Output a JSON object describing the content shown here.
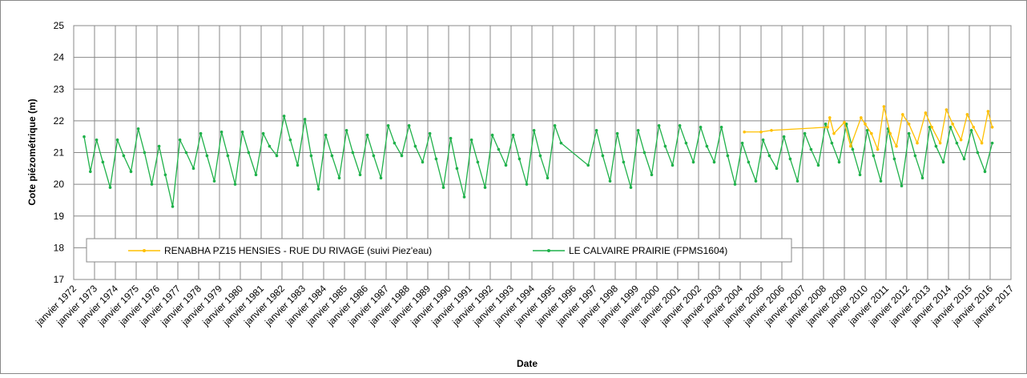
{
  "chart_data": {
    "type": "line",
    "y_label": "Cote piézométrique (m)",
    "x_label": "Date",
    "ylim": [
      17,
      25
    ],
    "yticks": [
      17,
      18,
      19,
      20,
      21,
      22,
      23,
      24,
      25
    ],
    "xlim": [
      1972,
      2017
    ],
    "xticks": [
      {
        "value": 1972,
        "label": "janvier 1972"
      },
      {
        "value": 1973,
        "label": "janvier 1973"
      },
      {
        "value": 1974,
        "label": "janvier 1974"
      },
      {
        "value": 1975,
        "label": "janvier 1975"
      },
      {
        "value": 1976,
        "label": "janvier 1976"
      },
      {
        "value": 1977,
        "label": "janvier 1977"
      },
      {
        "value": 1978,
        "label": "janvier 1978"
      },
      {
        "value": 1979,
        "label": "janvier 1979"
      },
      {
        "value": 1980,
        "label": "janvier 1980"
      },
      {
        "value": 1981,
        "label": "janvier 1981"
      },
      {
        "value": 1982,
        "label": "janvier 1982"
      },
      {
        "value": 1983,
        "label": "janvier 1983"
      },
      {
        "value": 1984,
        "label": "janvier 1984"
      },
      {
        "value": 1985,
        "label": "janvier 1985"
      },
      {
        "value": 1986,
        "label": "janvier 1986"
      },
      {
        "value": 1987,
        "label": "janvier 1987"
      },
      {
        "value": 1988,
        "label": "janvier 1988"
      },
      {
        "value": 1989,
        "label": "janvier 1989"
      },
      {
        "value": 1990,
        "label": "janvier 1990"
      },
      {
        "value": 1991,
        "label": "janvier 1991"
      },
      {
        "value": 1992,
        "label": "janvier 1992"
      },
      {
        "value": 1993,
        "label": "janvier 1993"
      },
      {
        "value": 1994,
        "label": "janvier 1994"
      },
      {
        "value": 1995,
        "label": "janvier 1995"
      },
      {
        "value": 1996,
        "label": "janvier 1996"
      },
      {
        "value": 1997,
        "label": "janvier 1997"
      },
      {
        "value": 1998,
        "label": "janvier 1998"
      },
      {
        "value": 1999,
        "label": "janvier 1999"
      },
      {
        "value": 2000,
        "label": "janvier 2000"
      },
      {
        "value": 2001,
        "label": "janvier 2001"
      },
      {
        "value": 2002,
        "label": "janvier 2002"
      },
      {
        "value": 2003,
        "label": "janvier 2003"
      },
      {
        "value": 2004,
        "label": "janvier 2004"
      },
      {
        "value": 2005,
        "label": "janvier 2005"
      },
      {
        "value": 2006,
        "label": "janvier 2006"
      },
      {
        "value": 2007,
        "label": "janvier 2007"
      },
      {
        "value": 2008,
        "label": "janvier 2008"
      },
      {
        "value": 2009,
        "label": "janvier 2009"
      },
      {
        "value": 2010,
        "label": "janvier 2010"
      },
      {
        "value": 2011,
        "label": "janvier 2011"
      },
      {
        "value": 2012,
        "label": "janvier 2012"
      },
      {
        "value": 2013,
        "label": "janvier 2013"
      },
      {
        "value": 2014,
        "label": "janvier 2014"
      },
      {
        "value": 2015,
        "label": "janvier 2015"
      },
      {
        "value": 2016,
        "label": "janvier 2016"
      },
      {
        "value": 2017,
        "label": "janvier 2017"
      }
    ],
    "grid": true,
    "legend": "bottom-left",
    "series": [
      {
        "name": "RENABHA PZ15 HENSIES - RUE DU RIVAGE (suivi Piez'eau)",
        "color": "#ffc000",
        "x": [
          2004.2,
          2005.0,
          2005.5,
          2008.2,
          2008.3,
          2008.5,
          2009.0,
          2009.3,
          2009.8,
          2010.0,
          2010.3,
          2010.6,
          2010.9,
          2011.2,
          2011.5,
          2011.8,
          2012.1,
          2012.5,
          2012.9,
          2013.2,
          2013.6,
          2013.9,
          2014.2,
          2014.6,
          2014.9,
          2015.2,
          2015.6,
          2015.9,
          2016.1
        ],
        "values": [
          21.65,
          21.65,
          21.7,
          21.8,
          22.1,
          21.6,
          21.95,
          21.2,
          22.1,
          21.9,
          21.6,
          21.1,
          22.45,
          21.6,
          21.2,
          22.2,
          21.9,
          21.3,
          22.25,
          21.8,
          21.3,
          22.35,
          21.9,
          21.4,
          22.2,
          21.8,
          21.3,
          22.3,
          21.8
        ]
      },
      {
        "name": "LE CALVAIRE PRAIRIE (FPMS1604)",
        "color": "#1fb14a",
        "x": [
          1972.5,
          1972.8,
          1973.1,
          1973.4,
          1973.75,
          1974.1,
          1974.4,
          1974.75,
          1975.1,
          1975.4,
          1975.75,
          1976.1,
          1976.4,
          1976.75,
          1977.1,
          1977.4,
          1977.75,
          1978.1,
          1978.4,
          1978.75,
          1979.1,
          1979.4,
          1979.75,
          1980.1,
          1980.4,
          1980.75,
          1981.1,
          1981.4,
          1981.75,
          1982.1,
          1982.4,
          1982.75,
          1983.1,
          1983.4,
          1983.75,
          1984.1,
          1984.4,
          1984.75,
          1985.1,
          1985.4,
          1985.75,
          1986.1,
          1986.4,
          1986.75,
          1987.1,
          1987.4,
          1987.75,
          1988.1,
          1988.4,
          1988.75,
          1989.1,
          1989.4,
          1989.75,
          1990.1,
          1990.4,
          1990.75,
          1991.1,
          1991.4,
          1991.75,
          1992.1,
          1992.4,
          1992.75,
          1993.1,
          1993.4,
          1993.75,
          1994.1,
          1994.4,
          1994.75,
          1995.1,
          1995.4,
          1996.7,
          1997.1,
          1997.4,
          1997.75,
          1998.1,
          1998.4,
          1998.75,
          1999.1,
          1999.4,
          1999.75,
          2000.1,
          2000.4,
          2000.75,
          2001.1,
          2001.4,
          2001.75,
          2002.1,
          2002.4,
          2002.75,
          2003.1,
          2003.4,
          2003.75,
          2004.1,
          2004.4,
          2004.75,
          2005.1,
          2005.4,
          2005.75,
          2006.1,
          2006.4,
          2006.75,
          2007.1,
          2007.4,
          2007.75,
          2008.1,
          2008.4,
          2008.75,
          2009.1,
          2009.4,
          2009.75,
          2010.1,
          2010.4,
          2010.75,
          2011.1,
          2011.4,
          2011.75,
          2012.1,
          2012.4,
          2012.75,
          2013.1,
          2013.4,
          2013.75,
          2014.1,
          2014.4,
          2014.75,
          2015.1,
          2015.4,
          2015.75,
          2016.1
        ],
        "values": [
          21.5,
          20.4,
          21.4,
          20.7,
          19.9,
          21.4,
          20.9,
          20.4,
          21.75,
          21.0,
          20.0,
          21.2,
          20.3,
          19.3,
          21.4,
          21.0,
          20.5,
          21.6,
          20.9,
          20.1,
          21.65,
          20.9,
          20.0,
          21.65,
          21.0,
          20.3,
          21.6,
          21.2,
          20.9,
          22.15,
          21.4,
          20.6,
          22.05,
          20.9,
          19.85,
          21.55,
          20.9,
          20.2,
          21.7,
          21.0,
          20.3,
          21.55,
          20.9,
          20.2,
          21.85,
          21.3,
          20.9,
          21.85,
          21.2,
          20.7,
          21.6,
          20.8,
          19.9,
          21.45,
          20.5,
          19.6,
          21.4,
          20.7,
          19.9,
          21.55,
          21.1,
          20.6,
          21.55,
          20.8,
          20.0,
          21.7,
          20.9,
          20.2,
          21.85,
          21.3,
          20.6,
          21.7,
          20.9,
          20.1,
          21.6,
          20.7,
          19.9,
          21.7,
          21.0,
          20.3,
          21.85,
          21.2,
          20.6,
          21.85,
          21.3,
          20.7,
          21.8,
          21.2,
          20.7,
          21.8,
          20.9,
          20.0,
          21.3,
          20.7,
          20.1,
          21.4,
          20.9,
          20.5,
          21.5,
          20.8,
          20.1,
          21.6,
          21.1,
          20.6,
          21.9,
          21.3,
          20.7,
          21.9,
          21.1,
          20.3,
          21.7,
          20.9,
          20.1,
          21.75,
          20.8,
          19.95,
          21.6,
          20.9,
          20.2,
          21.8,
          21.2,
          20.7,
          21.8,
          21.3,
          20.8,
          21.7,
          21.0,
          20.4,
          21.3
        ]
      }
    ]
  }
}
